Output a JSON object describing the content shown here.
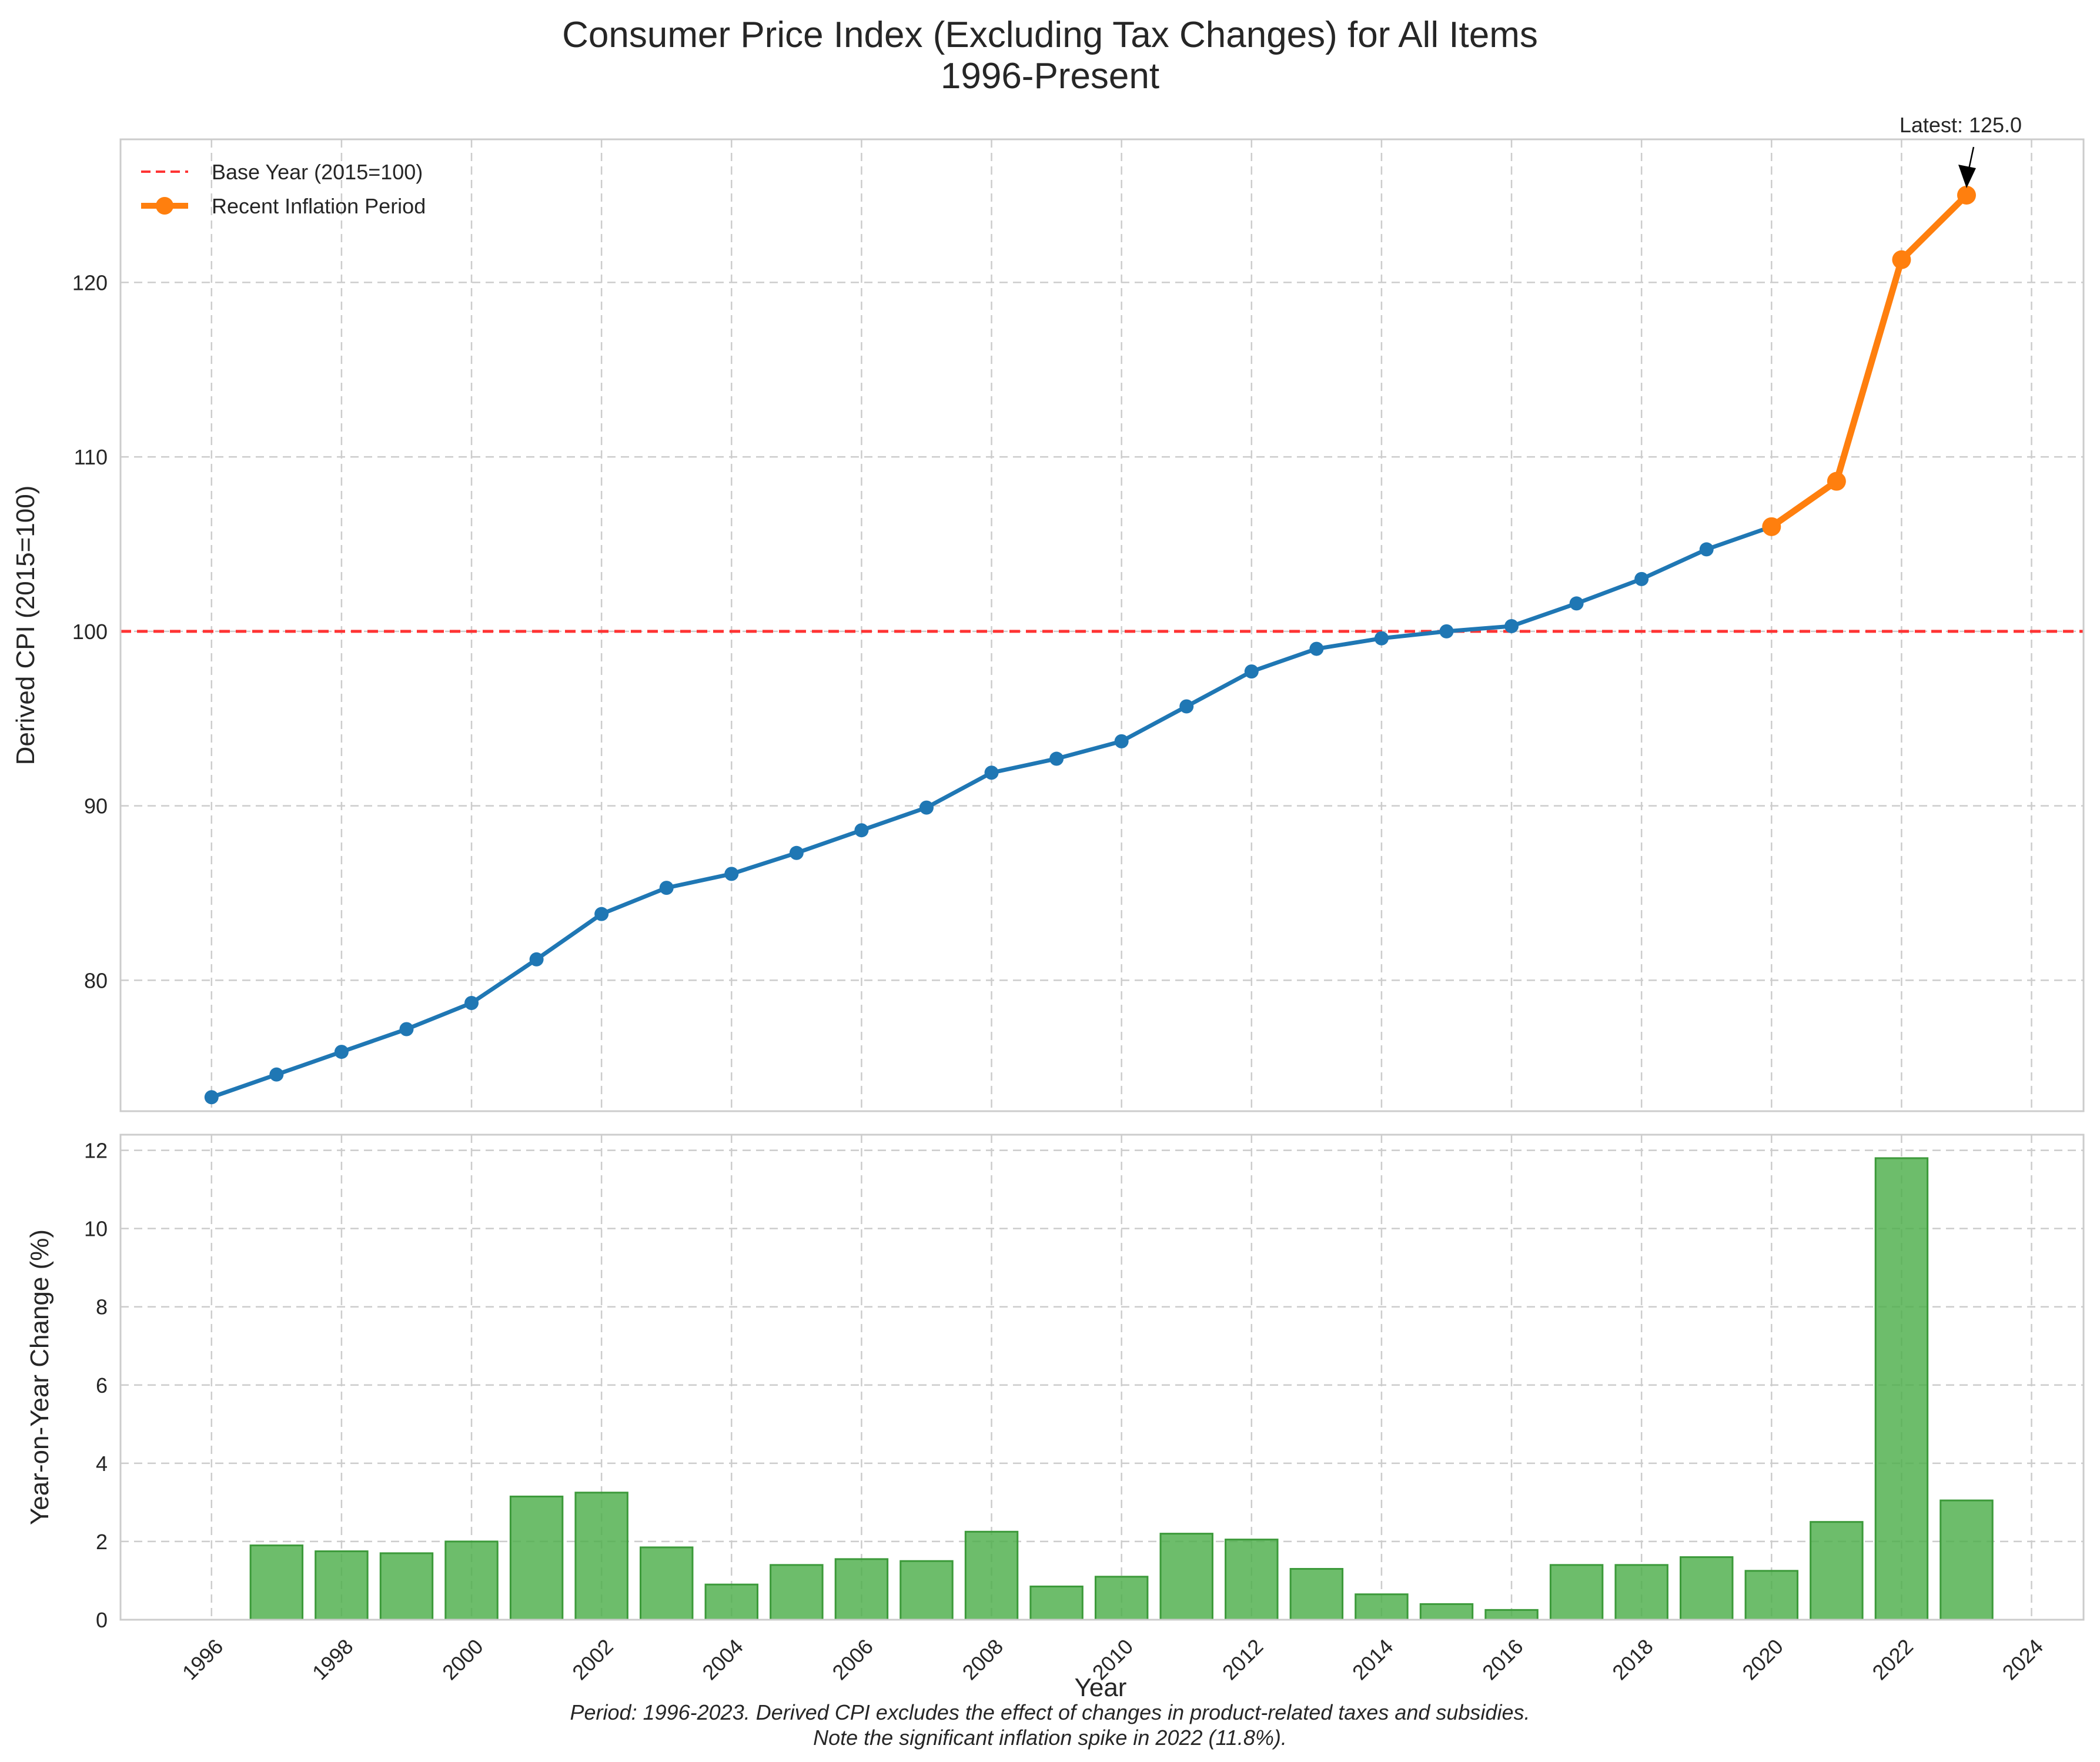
{
  "chart_data": [
    {
      "type": "line",
      "title": "Consumer Price Index (Excluding Tax Changes) for All Items",
      "subtitle": "1996-Present",
      "ylabel": "Derived CPI (2015=100)",
      "xlim": [
        1994.6,
        2024.8
      ],
      "ylim": [
        72.5,
        128.2
      ],
      "yticks": [
        80,
        90,
        100,
        110,
        120
      ],
      "grid": true,
      "legend_position": "top-left",
      "x": [
        1996,
        1997,
        1998,
        1999,
        2000,
        2001,
        2002,
        2003,
        2004,
        2005,
        2006,
        2007,
        2008,
        2009,
        2010,
        2011,
        2012,
        2013,
        2014,
        2015,
        2016,
        2017,
        2018,
        2019,
        2020,
        2021,
        2022,
        2023
      ],
      "values": [
        73.3,
        74.6,
        75.9,
        77.2,
        78.7,
        81.2,
        83.8,
        85.3,
        86.1,
        87.3,
        88.6,
        89.9,
        91.9,
        92.7,
        93.7,
        95.7,
        97.7,
        99.0,
        99.6,
        100.0,
        100.3,
        101.6,
        103.0,
        104.7,
        106.0,
        108.6,
        121.3,
        125.0
      ],
      "series": [
        {
          "key": "main",
          "color": "#1f77b4",
          "range": [
            1996,
            2020
          ]
        },
        {
          "key": "recent",
          "name": "Recent Inflation Period",
          "color": "#ff7f0e",
          "range": [
            2020,
            2023
          ]
        }
      ],
      "reference_line": {
        "value": 100,
        "name": "Base Year (2015=100)",
        "color": "#ff3333",
        "style": "dashed"
      },
      "annotation": {
        "text": "Latest: 125.0",
        "x": 2023,
        "y": 125.0
      }
    },
    {
      "type": "bar",
      "ylabel": "Year-on-Year Change (%)",
      "xlabel": "Year",
      "xlim": [
        1994.6,
        2024.8
      ],
      "ylim": [
        0,
        12.4
      ],
      "yticks": [
        0,
        2,
        4,
        6,
        8,
        10,
        12
      ],
      "xticks": [
        1996,
        1998,
        2000,
        2002,
        2004,
        2006,
        2008,
        2010,
        2012,
        2014,
        2016,
        2018,
        2020,
        2022,
        2024
      ],
      "grid": true,
      "color": "#4daf4a",
      "x": [
        1997,
        1998,
        1999,
        2000,
        2001,
        2002,
        2003,
        2004,
        2005,
        2006,
        2007,
        2008,
        2009,
        2010,
        2011,
        2012,
        2013,
        2014,
        2015,
        2016,
        2017,
        2018,
        2019,
        2020,
        2021,
        2022,
        2023
      ],
      "values": [
        1.9,
        1.75,
        1.7,
        2.0,
        3.15,
        3.25,
        1.85,
        0.9,
        1.4,
        1.55,
        1.5,
        2.25,
        0.85,
        1.1,
        2.2,
        2.05,
        1.3,
        0.65,
        0.4,
        0.25,
        1.4,
        1.4,
        1.6,
        1.25,
        2.5,
        11.8,
        3.05
      ]
    }
  ],
  "footnote": {
    "line1": "Period: 1996-2023. Derived CPI excludes the effect of changes in product-related taxes and subsidies.",
    "line2": "Note the significant inflation spike in 2022 (11.8%)."
  }
}
